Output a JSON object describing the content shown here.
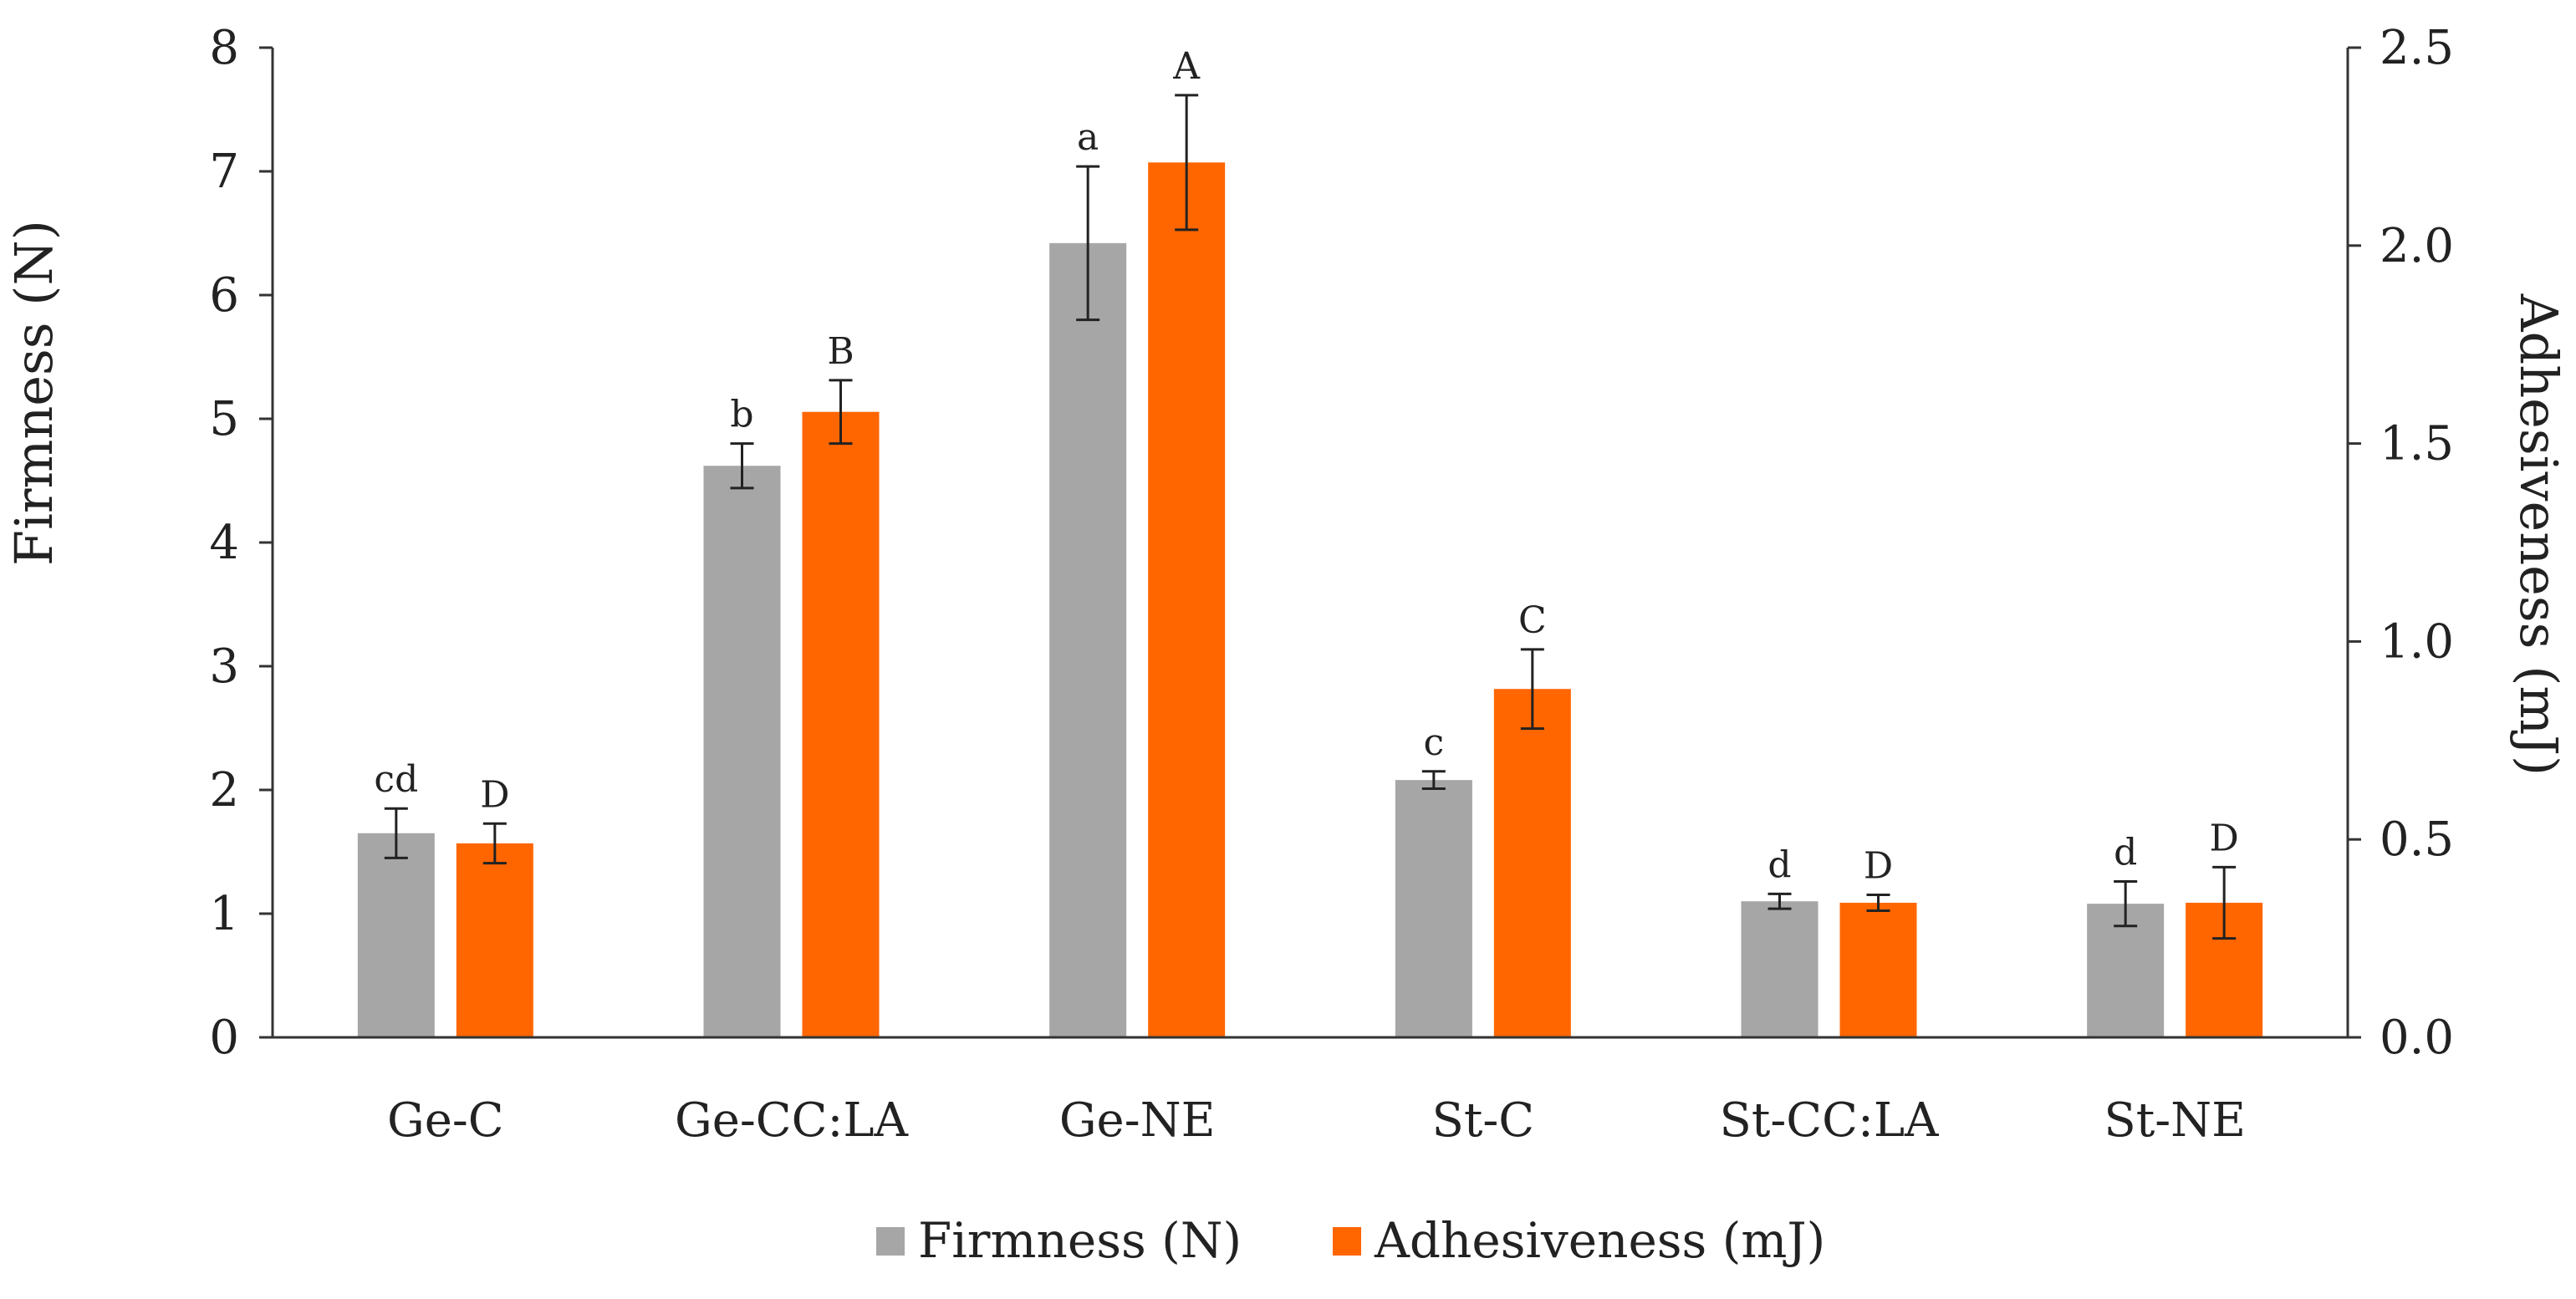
{
  "chart_data": {
    "type": "bar",
    "title": "",
    "categories": [
      "Ge-C",
      "Ge-CC:LA",
      "Ge-NE",
      "St-C",
      "St-CC:LA",
      "St-NE"
    ],
    "xlabel": "",
    "ylabel": "Firmness (N)",
    "y2label": "Adhesiveness (mJ)",
    "ylim": [
      0,
      8
    ],
    "y2lim": [
      0,
      2.5
    ],
    "yticks": [
      "0",
      "1",
      "2",
      "3",
      "4",
      "5",
      "6",
      "7",
      "8"
    ],
    "y2ticks": [
      "0.0",
      "0.5",
      "1.0",
      "1.5",
      "2.0",
      "2.5"
    ],
    "grid": false,
    "legend_position": "bottom-center",
    "series": [
      {
        "name": "Firmness (N)",
        "axis": "left",
        "color": "#a6a6a6",
        "values": [
          1.65,
          4.62,
          6.42,
          2.08,
          1.1,
          1.08
        ],
        "errors": [
          0.2,
          0.18,
          0.62,
          0.07,
          0.06,
          0.18
        ],
        "labels": [
          "cd",
          "b",
          "a",
          "c",
          "d",
          "d"
        ]
      },
      {
        "name": "Adhesiveness (mJ)",
        "axis": "right",
        "color": "#ff6600",
        "values": [
          0.49,
          1.58,
          2.21,
          0.88,
          0.34,
          0.34
        ],
        "errors": [
          0.05,
          0.08,
          0.17,
          0.1,
          0.02,
          0.09
        ],
        "labels": [
          "D",
          "B",
          "A",
          "C",
          "D",
          "D"
        ]
      }
    ]
  }
}
